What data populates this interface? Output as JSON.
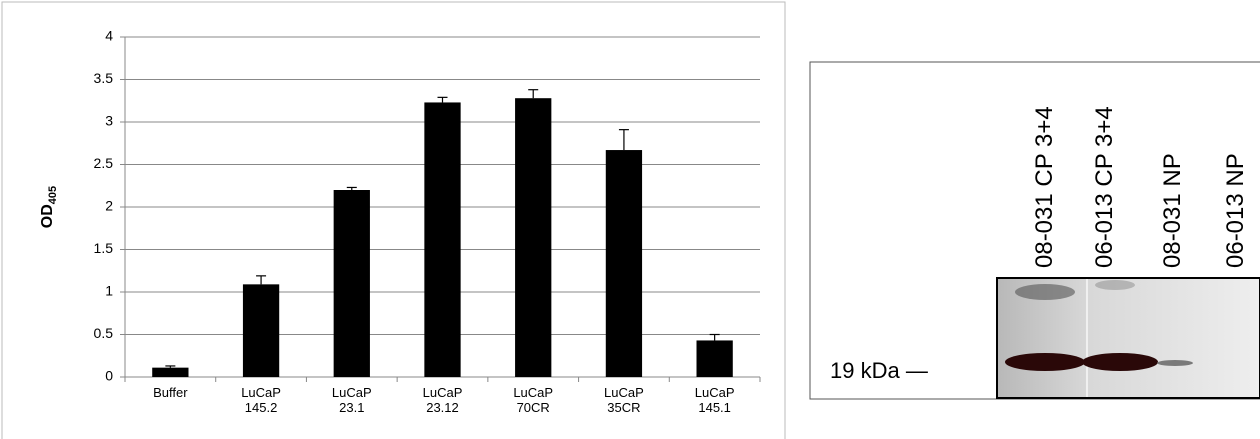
{
  "chart_data": {
    "type": "bar",
    "y_label": {
      "text": "OD",
      "subscript": "405"
    },
    "categories": [
      [
        "Buffer"
      ],
      [
        "LuCaP",
        "145.2"
      ],
      [
        "LuCaP",
        "23.1"
      ],
      [
        "LuCaP",
        "23.12"
      ],
      [
        "LuCaP",
        "70CR"
      ],
      [
        "LuCaP",
        "35CR"
      ],
      [
        "LuCaP",
        "145.1"
      ]
    ],
    "values": [
      0.11,
      1.09,
      2.2,
      3.23,
      3.28,
      2.67,
      0.43
    ],
    "errors": [
      0.02,
      0.1,
      0.03,
      0.06,
      0.1,
      0.24,
      0.07
    ],
    "color": "#000000",
    "ylim": [
      0,
      4
    ],
    "yticks": [
      0,
      0.5,
      1,
      1.5,
      2,
      2.5,
      3,
      3.5,
      4
    ],
    "grid": true
  },
  "blot": {
    "lanes": [
      "08-031 CP 3+4",
      "06-013 CP 3+4",
      "08-031 NP",
      "06-013 NP"
    ],
    "marker": "19 kDa —"
  }
}
